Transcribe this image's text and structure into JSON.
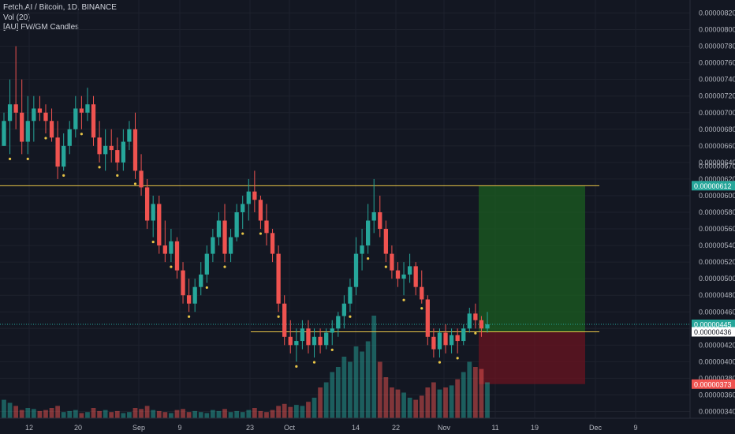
{
  "legend": {
    "symbol": "Fetch.AI / Bitcoin, 1D, BINANCE",
    "volume": "Vol (20)",
    "indicator": "[AU] FW/GM Candles"
  },
  "colors": {
    "background": "#131722",
    "up": "#26a69a",
    "down": "#ef5350",
    "horizontal_line": "#e8c547",
    "target_zone": "#1b5e20",
    "stop_zone": "#6a1420",
    "marker": "#e8c547"
  },
  "chart_data": {
    "type": "candlestick",
    "title": "Fetch.AI / Bitcoin, 1D, BINANCE",
    "y_axis_ticks": [
      "0.00000820",
      "0.00000800",
      "0.00000780",
      "0.00000760",
      "0.00000740",
      "0.00000720",
      "0.00000700",
      "0.00000680",
      "0.00000660",
      "0.00000640",
      "0.00000620",
      "0.00000600",
      "0.00000580",
      "0.00000560",
      "0.00000540",
      "0.00000520",
      "0.00000500",
      "0.00000480",
      "0.00000460",
      "0.00000440",
      "0.00000420",
      "0.00000400",
      "0.00000380",
      "0.00000360",
      "0.00000340"
    ],
    "ylim": [
      3.39e-06,
      8.3e-06
    ],
    "x_axis_ticks": [
      "12",
      "20",
      "Sep",
      "9",
      "23",
      "Oct",
      "14",
      "22",
      "Nov",
      "11",
      "19",
      "Dec",
      "9"
    ],
    "candles": [
      [
        660,
        700,
        660,
        690
      ],
      [
        690,
        740,
        650,
        710
      ],
      [
        710,
        780,
        680,
        700
      ],
      [
        700,
        740,
        650,
        665
      ],
      [
        665,
        720,
        650,
        690
      ],
      [
        690,
        720,
        665,
        705
      ],
      [
        705,
        720,
        690,
        700
      ],
      [
        700,
        710,
        675,
        690
      ],
      [
        690,
        705,
        665,
        670
      ],
      [
        670,
        690,
        620,
        635
      ],
      [
        635,
        675,
        630,
        660
      ],
      [
        660,
        690,
        650,
        680
      ],
      [
        680,
        720,
        670,
        705
      ],
      [
        705,
        720,
        680,
        700
      ],
      [
        700,
        730,
        690,
        710
      ],
      [
        710,
        720,
        660,
        670
      ],
      [
        670,
        690,
        640,
        650
      ],
      [
        650,
        680,
        630,
        660
      ],
      [
        660,
        680,
        640,
        655
      ],
      [
        655,
        670,
        630,
        640
      ],
      [
        640,
        680,
        630,
        665
      ],
      [
        665,
        690,
        655,
        680
      ],
      [
        680,
        700,
        620,
        630
      ],
      [
        630,
        650,
        600,
        610
      ],
      [
        610,
        620,
        560,
        570
      ],
      [
        570,
        600,
        550,
        590
      ],
      [
        590,
        600,
        530,
        540
      ],
      [
        540,
        570,
        520,
        530
      ],
      [
        530,
        560,
        520,
        545
      ],
      [
        545,
        550,
        500,
        510
      ],
      [
        510,
        520,
        470,
        480
      ],
      [
        480,
        500,
        460,
        470
      ],
      [
        470,
        500,
        460,
        490
      ],
      [
        490,
        520,
        480,
        505
      ],
      [
        505,
        540,
        495,
        530
      ],
      [
        530,
        560,
        520,
        550
      ],
      [
        550,
        580,
        540,
        570
      ],
      [
        570,
        590,
        520,
        530
      ],
      [
        530,
        560,
        520,
        550
      ],
      [
        550,
        590,
        545,
        580
      ],
      [
        580,
        600,
        560,
        590
      ],
      [
        590,
        620,
        570,
        605
      ],
      [
        605,
        630,
        580,
        595
      ],
      [
        595,
        600,
        560,
        570
      ],
      [
        570,
        590,
        540,
        555
      ],
      [
        555,
        560,
        520,
        530
      ],
      [
        530,
        540,
        460,
        470
      ],
      [
        470,
        480,
        420,
        430
      ],
      [
        430,
        450,
        410,
        420
      ],
      [
        420,
        440,
        400,
        425
      ],
      [
        425,
        450,
        415,
        440
      ],
      [
        440,
        450,
        410,
        420
      ],
      [
        420,
        440,
        405,
        430
      ],
      [
        430,
        440,
        410,
        420
      ],
      [
        420,
        440,
        415,
        435
      ],
      [
        435,
        450,
        420,
        440
      ],
      [
        440,
        460,
        430,
        455
      ],
      [
        455,
        480,
        440,
        470
      ],
      [
        470,
        500,
        460,
        490
      ],
      [
        490,
        550,
        480,
        530
      ],
      [
        530,
        560,
        510,
        540
      ],
      [
        540,
        590,
        530,
        570
      ],
      [
        570,
        620,
        555,
        580
      ],
      [
        580,
        600,
        550,
        560
      ],
      [
        560,
        570,
        520,
        530
      ],
      [
        530,
        540,
        500,
        510
      ],
      [
        510,
        520,
        490,
        500
      ],
      [
        500,
        520,
        480,
        505
      ],
      [
        505,
        530,
        495,
        515
      ],
      [
        515,
        520,
        480,
        490
      ],
      [
        490,
        510,
        470,
        475
      ],
      [
        475,
        480,
        420,
        430
      ],
      [
        430,
        440,
        405,
        415
      ],
      [
        415,
        440,
        405,
        435
      ],
      [
        435,
        445,
        410,
        420
      ],
      [
        420,
        440,
        410,
        432
      ],
      [
        432,
        440,
        410,
        425
      ],
      [
        425,
        445,
        420,
        440
      ],
      [
        440,
        465,
        435,
        458
      ],
      [
        458,
        470,
        440,
        450
      ],
      [
        450,
        455,
        430,
        440
      ],
      [
        440,
        460,
        435,
        445
      ]
    ],
    "volume_relative": [
      0.18,
      0.15,
      0.12,
      0.08,
      0.1,
      0.09,
      0.07,
      0.08,
      0.1,
      0.12,
      0.06,
      0.07,
      0.08,
      0.05,
      0.06,
      0.1,
      0.07,
      0.08,
      0.06,
      0.07,
      0.05,
      0.06,
      0.1,
      0.09,
      0.12,
      0.08,
      0.07,
      0.06,
      0.05,
      0.08,
      0.09,
      0.06,
      0.07,
      0.06,
      0.05,
      0.08,
      0.07,
      0.09,
      0.06,
      0.07,
      0.06,
      0.08,
      0.1,
      0.07,
      0.06,
      0.08,
      0.12,
      0.14,
      0.11,
      0.13,
      0.12,
      0.16,
      0.2,
      0.3,
      0.35,
      0.45,
      0.5,
      0.6,
      0.55,
      0.7,
      0.65,
      0.75,
      1.0,
      0.55,
      0.4,
      0.3,
      0.28,
      0.25,
      0.2,
      0.18,
      0.22,
      0.3,
      0.35,
      0.28,
      0.3,
      0.32,
      0.38,
      0.45,
      0.55,
      0.5,
      0.48,
      0.35
    ],
    "horizontal_lines": [
      612,
      436
    ],
    "position": {
      "entry": 436,
      "target": 612,
      "stop": 373
    },
    "last_price": "0.00000445",
    "price_tags": [
      {
        "label": "0.00000612",
        "value": 612,
        "style": "target"
      },
      {
        "label": "0.00000445",
        "value": 445,
        "style": "last"
      },
      {
        "label": "0.00000436",
        "value": 436,
        "style": "entry"
      },
      {
        "label": "0.00000373",
        "value": 373,
        "style": "stop"
      }
    ],
    "extra_tick": "0.00000670"
  }
}
